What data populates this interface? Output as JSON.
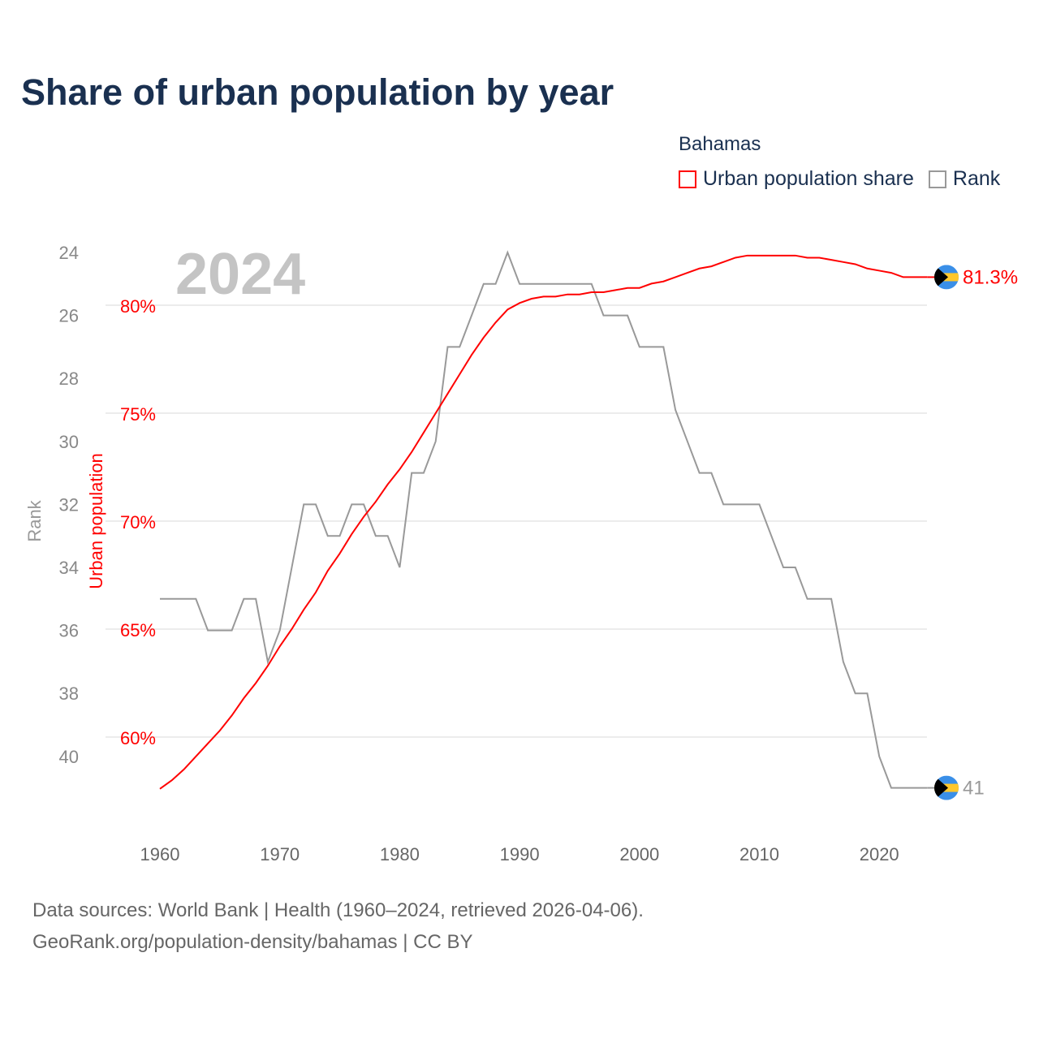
{
  "title": "Share of urban population by year",
  "legend": {
    "title": "Bahamas",
    "items": [
      {
        "label": "Urban population share",
        "color": "#ff0000"
      },
      {
        "label": "Rank",
        "color": "#999999"
      }
    ]
  },
  "year_watermark": "2024",
  "footer": {
    "line1": "Data sources: World Bank | Health (1960–2024, retrieved 2026-04-06).",
    "line2": "GeoRank.org/population-density/bahamas | CC BY"
  },
  "chart_data": {
    "type": "line",
    "title": "Share of urban population by year",
    "x_ticks": [
      "1960",
      "1970",
      "1980",
      "1990",
      "2000",
      "2010",
      "2020"
    ],
    "xlim": [
      1960,
      2024
    ],
    "left_axis": {
      "label": "Rank",
      "ticks": [
        "24",
        "26",
        "28",
        "30",
        "32",
        "34",
        "36",
        "38",
        "40"
      ],
      "range": [
        24,
        41
      ],
      "inverted": true
    },
    "right_axis": {
      "label": "Urban population",
      "ticks": [
        "80%",
        "75%",
        "70%",
        "65%",
        "60%"
      ],
      "tick_values": [
        80,
        75,
        70,
        65,
        60
      ]
    },
    "grid": true,
    "legend_position": "top-right",
    "end_labels": {
      "urban": "81.3%",
      "rank": "41"
    },
    "x": [
      1960,
      1961,
      1962,
      1963,
      1964,
      1965,
      1966,
      1967,
      1968,
      1969,
      1970,
      1971,
      1972,
      1973,
      1974,
      1975,
      1976,
      1977,
      1978,
      1979,
      1980,
      1981,
      1982,
      1983,
      1984,
      1985,
      1986,
      1987,
      1988,
      1989,
      1990,
      1991,
      1992,
      1993,
      1994,
      1995,
      1996,
      1997,
      1998,
      1999,
      2000,
      2001,
      2002,
      2003,
      2004,
      2005,
      2006,
      2007,
      2008,
      2009,
      2010,
      2011,
      2012,
      2013,
      2014,
      2015,
      2016,
      2017,
      2018,
      2019,
      2020,
      2021,
      2022,
      2023,
      2024
    ],
    "series": [
      {
        "name": "Urban population share",
        "unit": "%",
        "color": "#ff0000",
        "values": [
          57.6,
          58.0,
          58.5,
          59.1,
          59.7,
          60.3,
          61.0,
          61.8,
          62.5,
          63.3,
          64.2,
          65.0,
          65.9,
          66.7,
          67.7,
          68.5,
          69.4,
          70.2,
          70.9,
          71.7,
          72.4,
          73.2,
          74.1,
          75.0,
          75.9,
          76.8,
          77.7,
          78.5,
          79.2,
          79.8,
          80.1,
          80.3,
          80.4,
          80.4,
          80.5,
          80.5,
          80.6,
          80.6,
          80.7,
          80.8,
          80.8,
          81.0,
          81.1,
          81.3,
          81.5,
          81.7,
          81.8,
          82.0,
          82.2,
          82.3,
          82.3,
          82.3,
          82.3,
          82.3,
          82.2,
          82.2,
          82.1,
          82.0,
          81.9,
          81.7,
          81.6,
          81.5,
          81.3,
          81.3,
          81.3
        ]
      },
      {
        "name": "Rank",
        "color": "#999999",
        "values": [
          35,
          35,
          35,
          35,
          36,
          36,
          36,
          35,
          35,
          37,
          36,
          34,
          32,
          32,
          33,
          33,
          32,
          32,
          33,
          33,
          34,
          31,
          31,
          30,
          27,
          27,
          26,
          25,
          25,
          24,
          25,
          25,
          25,
          25,
          25,
          25,
          25,
          26,
          26,
          26,
          27,
          27,
          27,
          29,
          30,
          31,
          31,
          32,
          32,
          32,
          32,
          33,
          34,
          34,
          35,
          35,
          35,
          37,
          38,
          38,
          40,
          41,
          41,
          41,
          41
        ]
      }
    ]
  }
}
